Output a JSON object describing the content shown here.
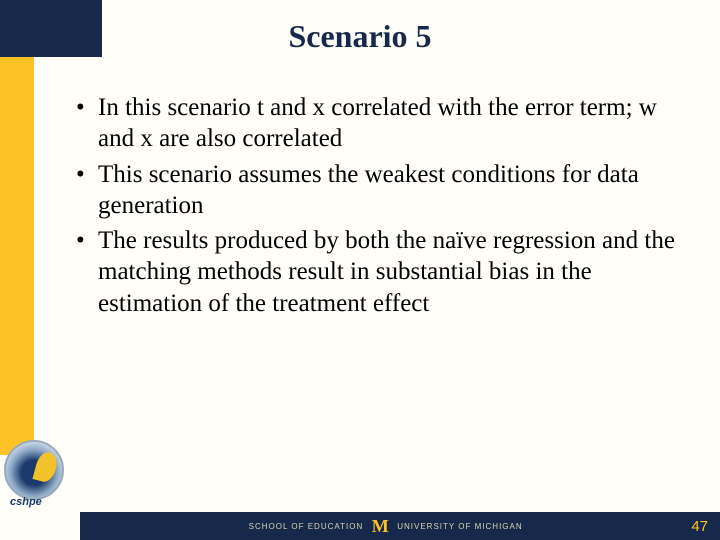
{
  "colors": {
    "navy": "#17294b",
    "maize": "#fdc226",
    "background": "#fffef9",
    "footer_text": "#d9d2b0",
    "body_text": "#000000"
  },
  "title": "Scenario 5",
  "title_fontsize": 32,
  "body_fontsize": 25,
  "bullets": [
    "In this scenario t and x correlated with the error term; w and x are also correlated",
    "This scenario assumes the weakest conditions for data generation",
    "The results produced by both the naïve regression and the matching methods result in substantial bias in the estimation of the treatment effect"
  ],
  "logo": {
    "label": "cshpe"
  },
  "footer": {
    "left_text": "SCHOOL OF EDUCATION",
    "right_text": "UNIVERSITY OF MICHIGAN",
    "page_number": "47"
  }
}
